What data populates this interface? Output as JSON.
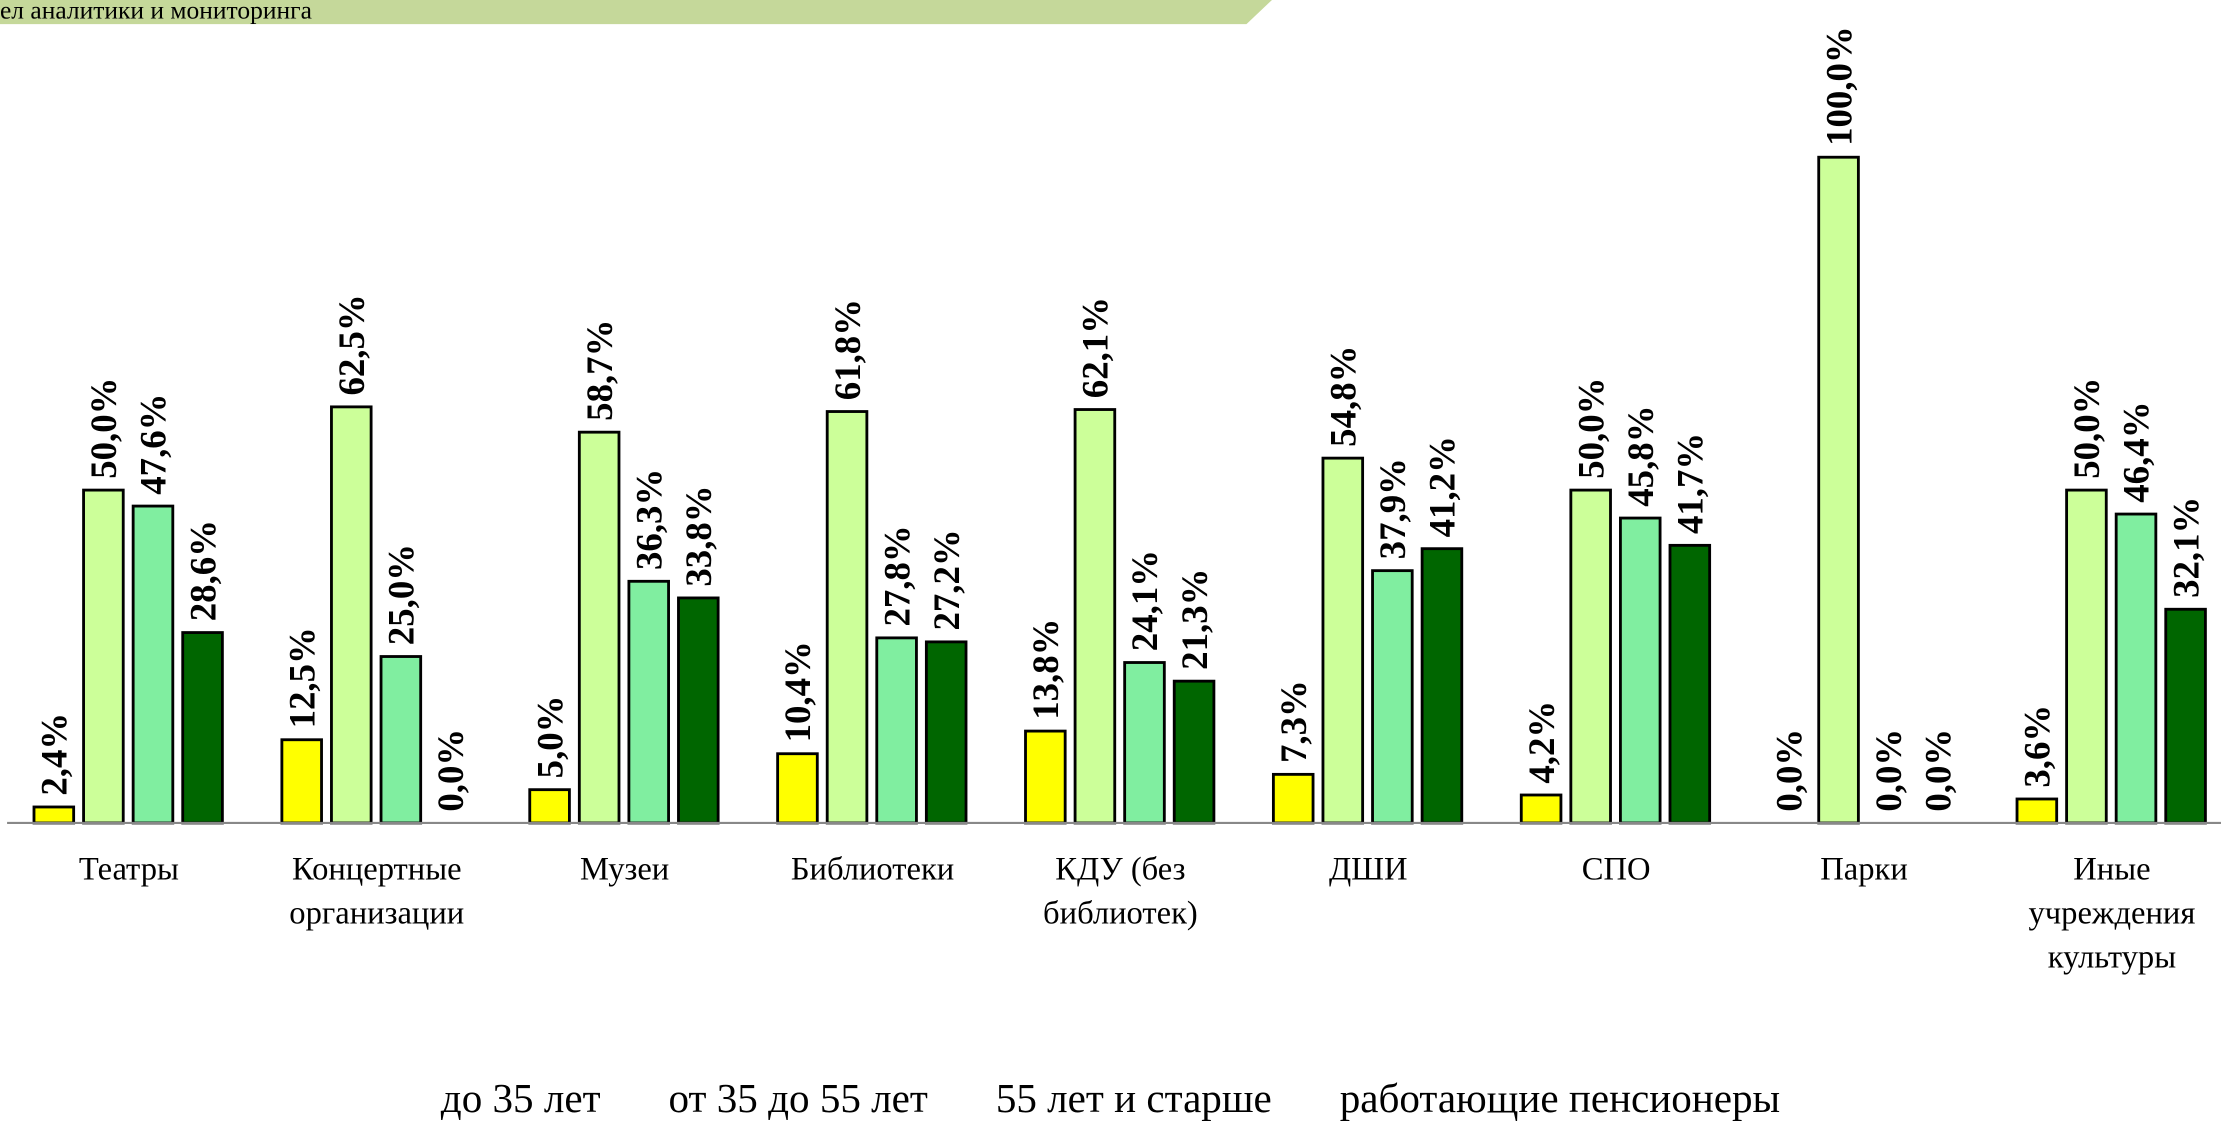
{
  "header": {
    "text": "ел аналитики и мониторинга"
  },
  "chart_data": {
    "type": "bar",
    "categories": [
      "Театры",
      "Концертные организации",
      "Музеи",
      "Библиотеки",
      "КДУ (без библиотек)",
      "ДШИ",
      "СПО",
      "Парки",
      "Иные учреждения культуры"
    ],
    "ylim": [
      0,
      100
    ],
    "series": [
      {
        "name": "до 35 лет",
        "color": "#ffff00",
        "values": [
          2.4,
          12.5,
          5.0,
          10.4,
          13.8,
          7.3,
          4.2,
          0.0,
          3.6
        ],
        "value_labels": [
          "2,4%",
          "12,5%",
          "5,0%",
          "10,4%",
          "13,8%",
          "7,3%",
          "4,2%",
          "0,0%",
          "3,6%"
        ]
      },
      {
        "name": "от 35 до 55 лет",
        "color": "#ccff99",
        "values": [
          50.0,
          62.5,
          58.7,
          61.8,
          62.1,
          54.8,
          50.0,
          100.0,
          50.0
        ],
        "value_labels": [
          "50,0%",
          "62,5%",
          "58,7%",
          "61,8%",
          "62,1%",
          "54,8%",
          "50,0%",
          "100,0%",
          "50,0%"
        ]
      },
      {
        "name": "55 лет и старше",
        "color": "#80eea0",
        "values": [
          47.6,
          25.0,
          36.3,
          27.8,
          24.1,
          37.9,
          45.8,
          0.0,
          46.4
        ],
        "value_labels": [
          "47,6%",
          "25,0%",
          "36,3%",
          "27,8%",
          "24,1%",
          "37,9%",
          "45,8%",
          "0,0%",
          "46,4%"
        ]
      },
      {
        "name": "работающие пенсионеры",
        "color": "#006600",
        "values": [
          28.6,
          0.0,
          33.8,
          27.2,
          21.3,
          41.2,
          41.7,
          0.0,
          32.1
        ],
        "value_labels": [
          "28,6%",
          "0,0%",
          "33,8%",
          "27,2%",
          "21,3%",
          "41,2%",
          "41,7%",
          "0,0%",
          "32,1%"
        ]
      }
    ]
  }
}
